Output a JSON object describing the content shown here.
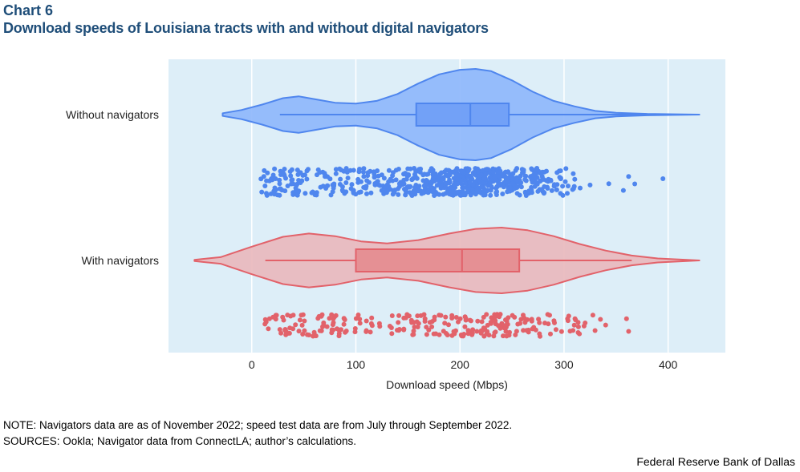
{
  "header": {
    "chart_number": "Chart 6",
    "title": "Download speeds of Louisiana tracts with and without digital navigators"
  },
  "notes": {
    "note": "NOTE: Navigators data are as of November 2022; speed test data are from July through September 2022.",
    "sources": "SOURCES: Ookla; Navigator data from ConnectLA; author’s calculations."
  },
  "footer": {
    "organization": "Federal Reserve Bank of Dallas"
  },
  "colors": {
    "plot_background": "#ddeef8",
    "without_fill": "#8db6fb",
    "without_box": "#6c9cf6",
    "without_line": "#4f86ee",
    "with_fill": "#e9b7bb",
    "with_box": "#e4888c",
    "with_line": "#e2626a"
  },
  "chart_data": {
    "type": "violin",
    "orientation": "horizontal",
    "xlabel": "Download speed (Mbps)",
    "ylabel": "",
    "xlim": [
      -80,
      455
    ],
    "xticks": [
      0,
      100,
      200,
      300,
      400
    ],
    "grid": true,
    "legend": "none",
    "series": [
      {
        "name": "Without navigators",
        "kde_extent": [
          -28,
          430
        ],
        "box": {
          "q1": 158,
          "median": 210,
          "q3": 247,
          "whisker_low": 27,
          "whisker_high": 430
        },
        "density": [
          [
            -28,
            0.03
          ],
          [
            -10,
            0.1
          ],
          [
            10,
            0.22
          ],
          [
            30,
            0.36
          ],
          [
            45,
            0.4
          ],
          [
            60,
            0.34
          ],
          [
            80,
            0.26
          ],
          [
            100,
            0.24
          ],
          [
            120,
            0.3
          ],
          [
            140,
            0.45
          ],
          [
            160,
            0.68
          ],
          [
            180,
            0.88
          ],
          [
            200,
            0.98
          ],
          [
            215,
            1.0
          ],
          [
            230,
            0.95
          ],
          [
            250,
            0.75
          ],
          [
            270,
            0.5
          ],
          [
            290,
            0.3
          ],
          [
            310,
            0.18
          ],
          [
            330,
            0.08
          ],
          [
            350,
            0.04
          ],
          [
            380,
            0.015
          ],
          [
            430,
            0.0
          ]
        ],
        "points": {
          "count": 700,
          "range": [
            8,
            318
          ],
          "outliers": [
            325,
            343,
            357,
            362,
            368,
            395
          ]
        }
      },
      {
        "name": "With navigators",
        "kde_extent": [
          -55,
          430
        ],
        "box": {
          "q1": 100,
          "median": 202,
          "q3": 257,
          "whisker_low": 13,
          "whisker_high": 365
        },
        "density": [
          [
            -55,
            0.02
          ],
          [
            -30,
            0.1
          ],
          [
            0,
            0.42
          ],
          [
            30,
            0.72
          ],
          [
            55,
            0.82
          ],
          [
            80,
            0.74
          ],
          [
            105,
            0.58
          ],
          [
            130,
            0.52
          ],
          [
            160,
            0.62
          ],
          [
            190,
            0.82
          ],
          [
            215,
            0.96
          ],
          [
            240,
            1.0
          ],
          [
            265,
            0.92
          ],
          [
            290,
            0.74
          ],
          [
            315,
            0.5
          ],
          [
            340,
            0.3
          ],
          [
            365,
            0.15
          ],
          [
            390,
            0.06
          ],
          [
            430,
            0.0
          ]
        ],
        "points": {
          "count": 260,
          "range": [
            10,
            330
          ],
          "outliers": [
            335,
            340,
            360,
            362
          ]
        }
      }
    ]
  }
}
